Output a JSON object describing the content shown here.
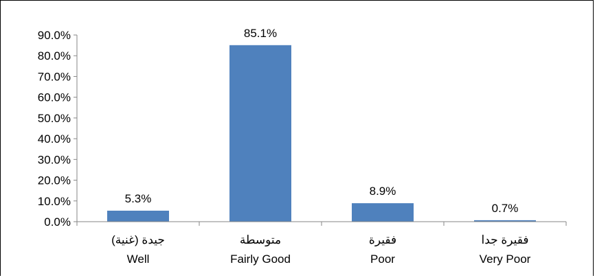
{
  "chart_data": {
    "type": "bar",
    "categories": [
      {
        "ar": "جيدة (غنية)",
        "en": "Well"
      },
      {
        "ar": "متوسطة",
        "en": "Fairly Good"
      },
      {
        "ar": "فقيرة",
        "en": "Poor"
      },
      {
        "ar": "فقيرة جدا",
        "en": "Very Poor"
      }
    ],
    "values": [
      5.3,
      85.1,
      8.9,
      0.7
    ],
    "data_labels": [
      "5.3%",
      "85.1%",
      "8.9%",
      "0.7%"
    ],
    "y_ticks": [
      "0.0%",
      "10.0%",
      "20.0%",
      "30.0%",
      "40.0%",
      "50.0%",
      "60.0%",
      "70.0%",
      "80.0%",
      "90.0%"
    ],
    "ylim": [
      0,
      90
    ],
    "bar_color": "#4F81BD",
    "grid": false,
    "legend": "none"
  }
}
